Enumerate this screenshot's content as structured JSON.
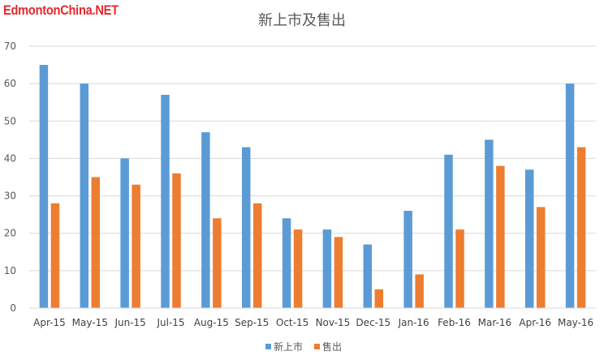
{
  "watermark": "EdmontonChina.NET",
  "chart_data": {
    "type": "bar",
    "title": "新上市及售出",
    "categories": [
      "Apr-15",
      "May-15",
      "Jun-15",
      "Jul-15",
      "Aug-15",
      "Sep-15",
      "Oct-15",
      "Nov-15",
      "Dec-15",
      "Jan-16",
      "Feb-16",
      "Mar-16",
      "Apr-16",
      "May-16"
    ],
    "series": [
      {
        "name": "新上市",
        "color": "#5b9bd5",
        "values": [
          65,
          60,
          40,
          57,
          47,
          43,
          24,
          21,
          17,
          26,
          41,
          45,
          37,
          60
        ]
      },
      {
        "name": "售出",
        "color": "#ed7d31",
        "values": [
          28,
          35,
          33,
          36,
          24,
          28,
          21,
          19,
          5,
          9,
          21,
          38,
          27,
          43
        ]
      }
    ],
    "ylim": [
      0,
      70
    ],
    "yticks": [
      0,
      10,
      20,
      30,
      40,
      50,
      60,
      70
    ],
    "grid": true,
    "legend": "bottom-center",
    "xlabel": "",
    "ylabel": ""
  }
}
